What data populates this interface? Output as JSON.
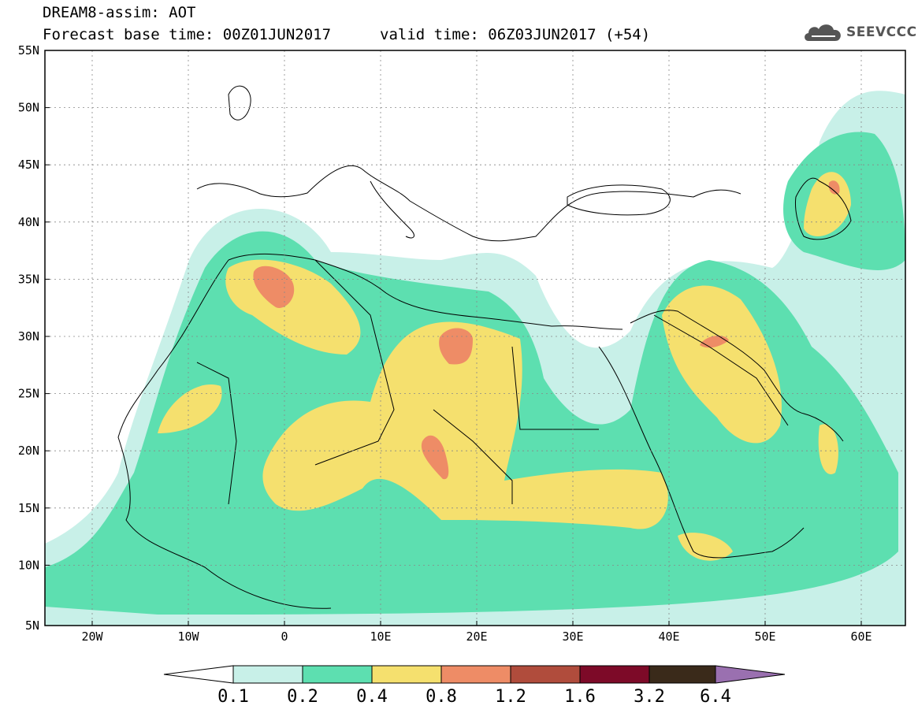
{
  "header": {
    "line1": "DREAM8-assim: AOT",
    "line2_base": "Forecast base time: 00Z01JUN2017",
    "line2_valid": "valid time: 06Z03JUN2017 (+54)"
  },
  "logo": {
    "text": "SEEVCCC",
    "icon": "cloud-icon"
  },
  "axes": {
    "lat_labels": [
      "55N",
      "50N",
      "45N",
      "40N",
      "35N",
      "30N",
      "25N",
      "20N",
      "15N",
      "10N",
      "5N"
    ],
    "lon_labels": [
      "20W",
      "10W",
      "0",
      "10E",
      "20E",
      "30E",
      "40E",
      "50E",
      "60E"
    ]
  },
  "colorbar": {
    "labels": [
      "0.1",
      "0.2",
      "0.4",
      "0.8",
      "1.2",
      "1.6",
      "3.2",
      "6.4"
    ],
    "colors": [
      "#c8f0e8",
      "#5ddfb0",
      "#f5e06e",
      "#ee8c66",
      "#b04c3c",
      "#7d0a28",
      "#3a2a1a",
      "#9a70b0"
    ]
  }
}
